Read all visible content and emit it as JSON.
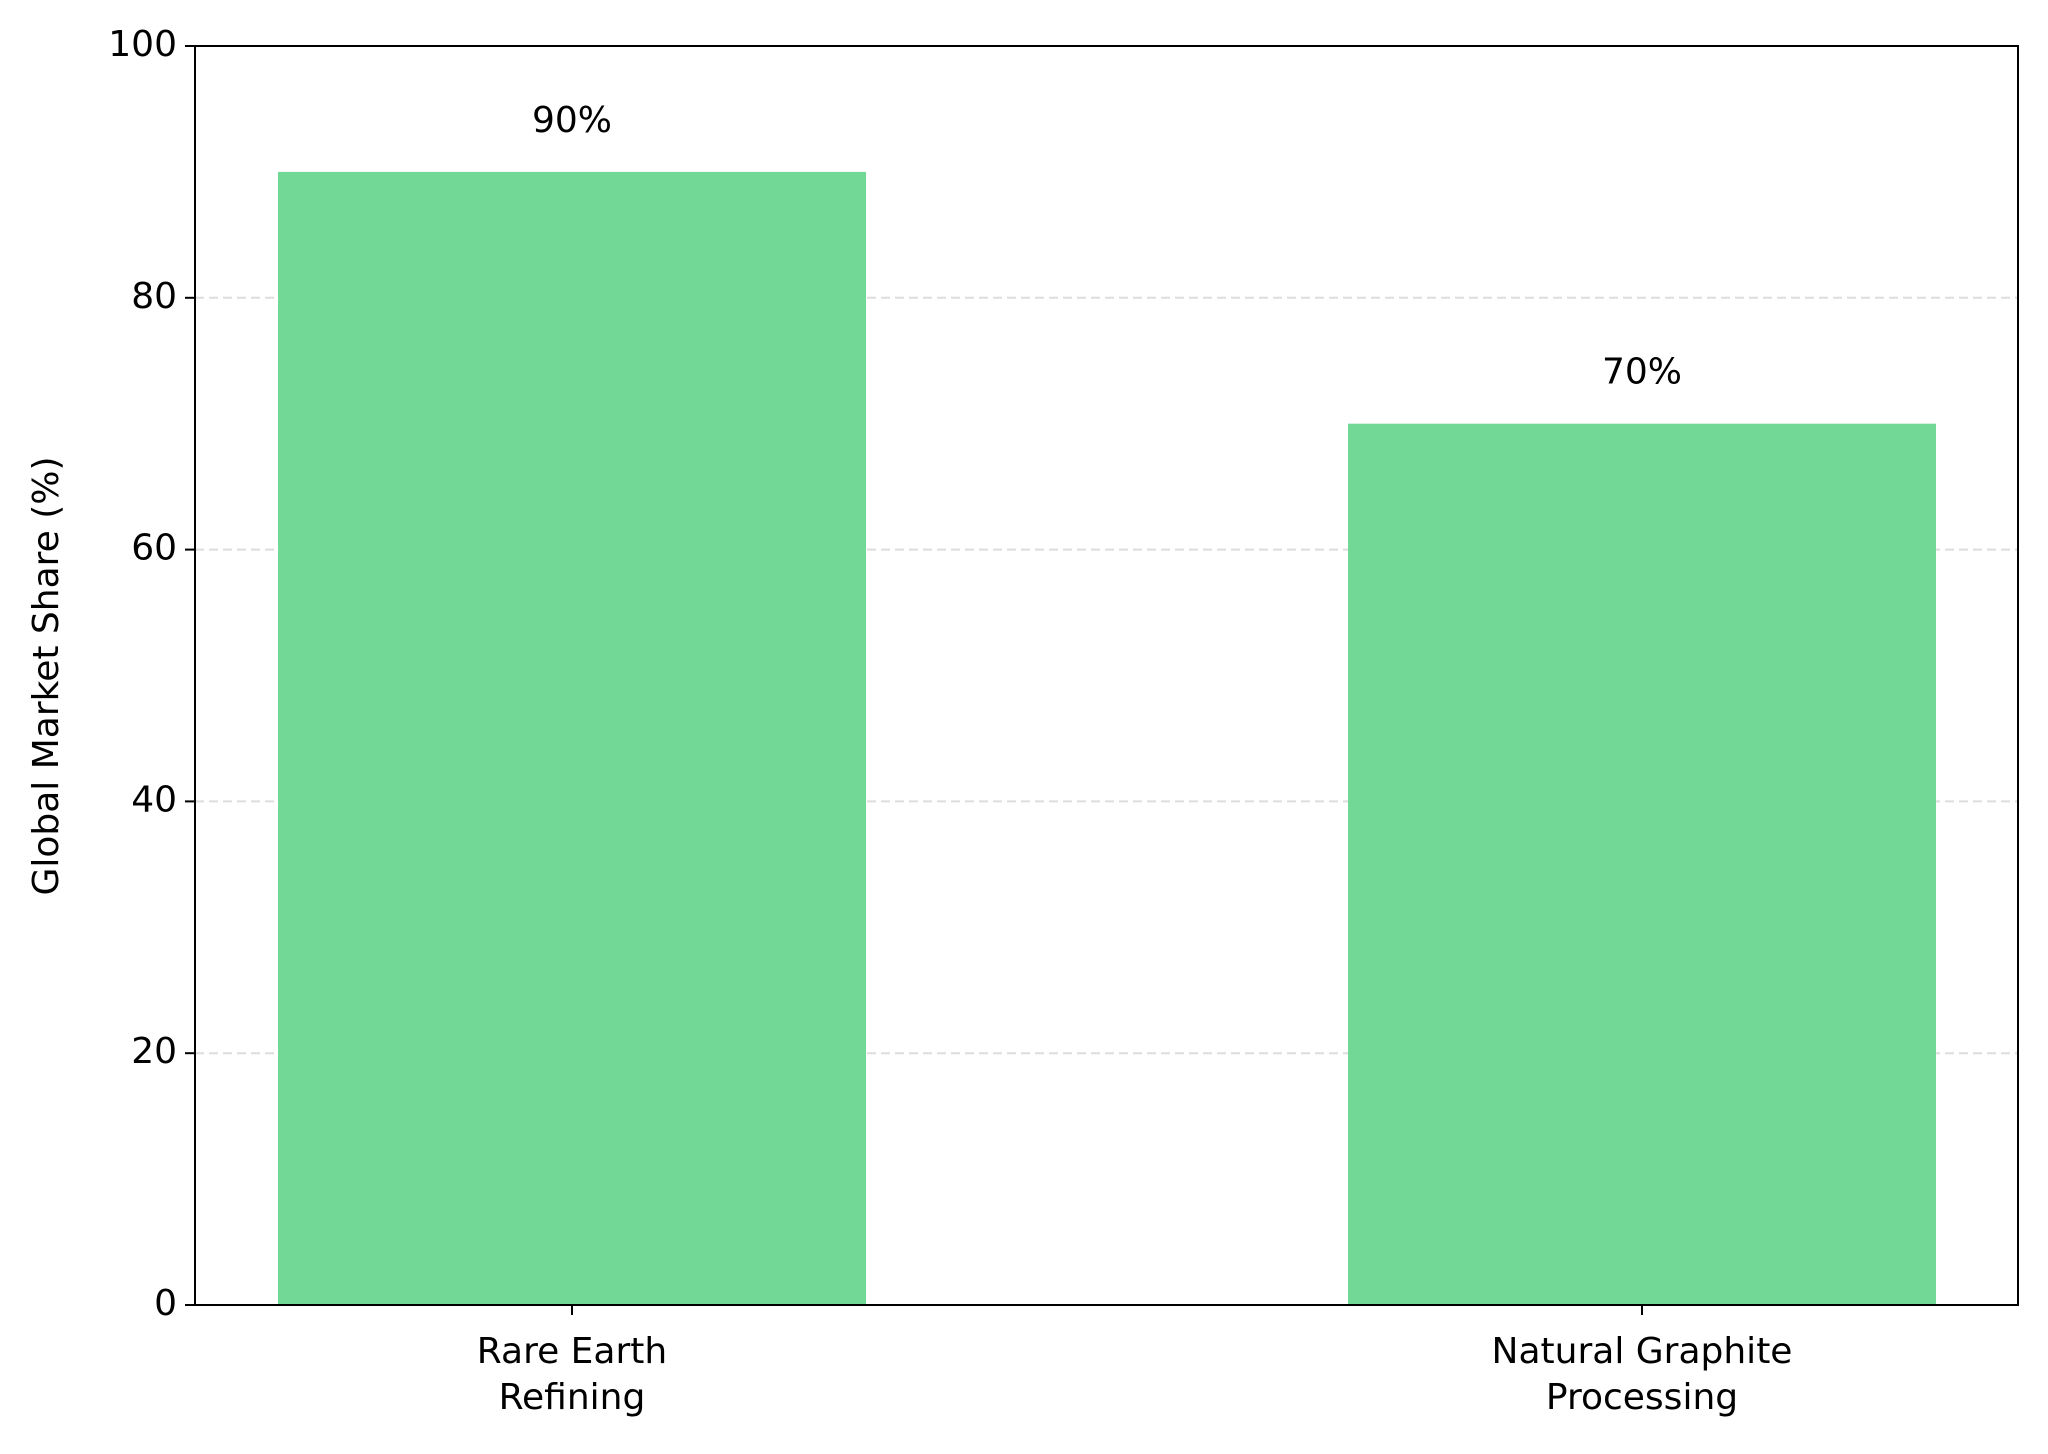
{
  "chart_data": {
    "type": "bar",
    "y_label": "Global Market Share (%)",
    "categories": [
      "Rare Earth\nRefining",
      "Natural Graphite\nProcessing"
    ],
    "values": [
      90,
      70
    ],
    "value_labels": [
      "90%",
      "70%"
    ],
    "color": "#72d896",
    "ylim": [
      0,
      100
    ],
    "yticks": [
      0,
      20,
      40,
      60,
      80,
      100
    ],
    "grid": true
  }
}
